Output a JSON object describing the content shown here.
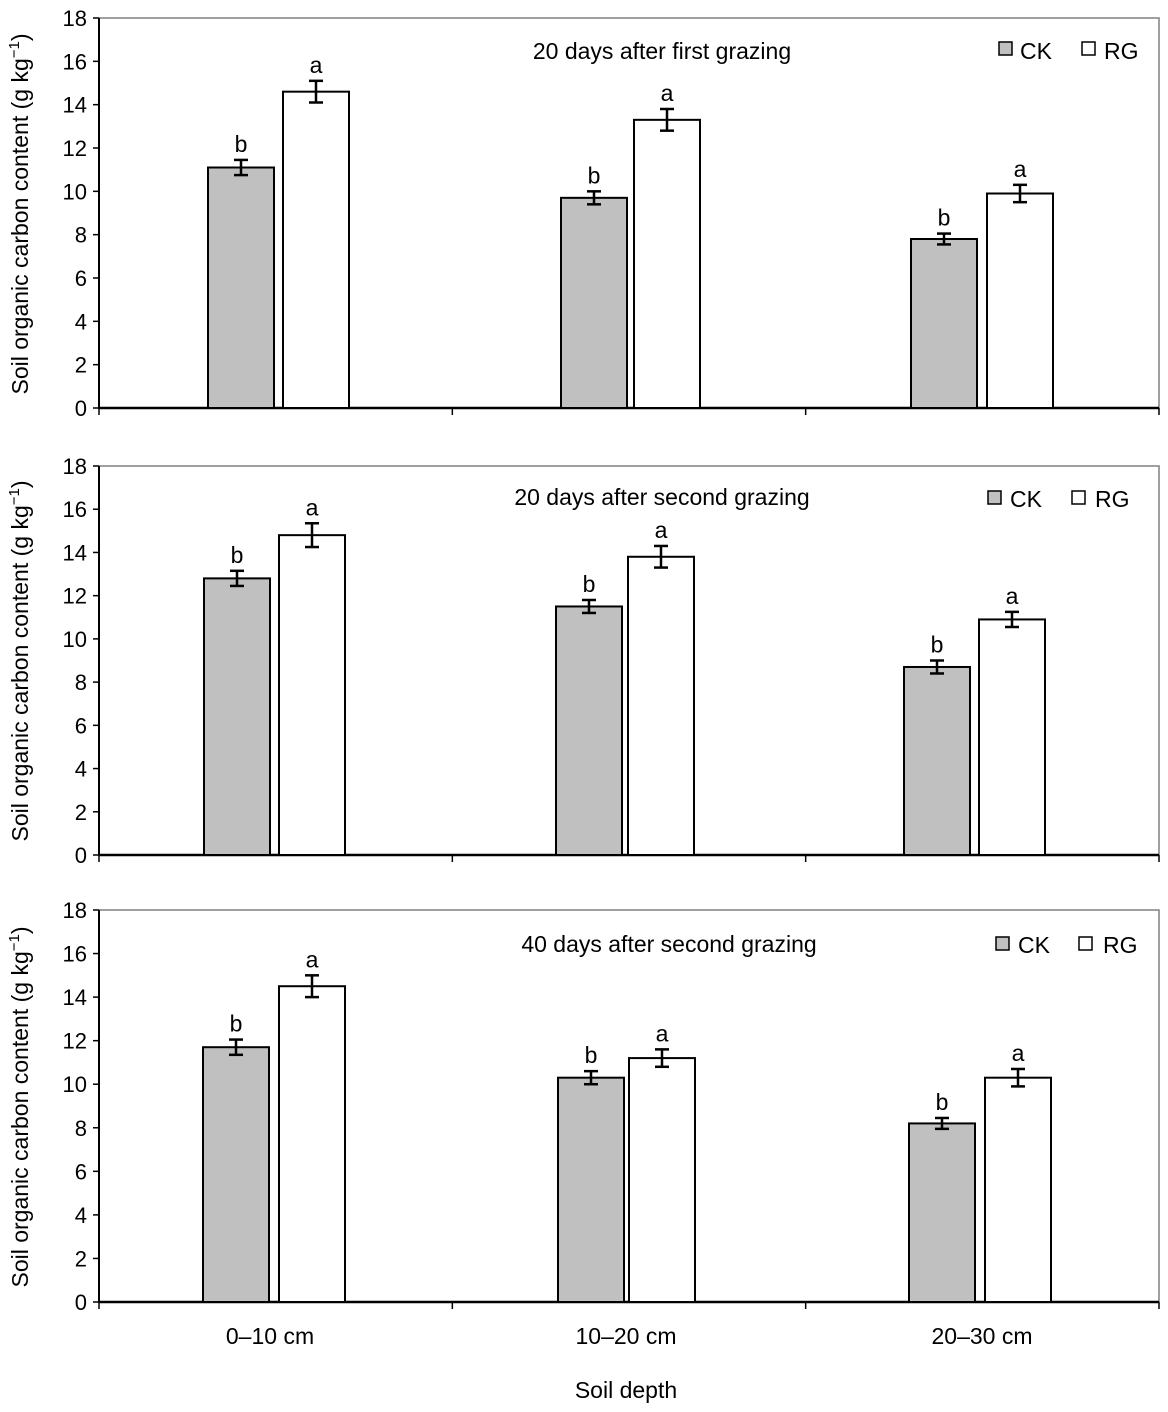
{
  "figure": {
    "ylabel": "Soil organic carbon content (g kg",
    "ylabel_sup": "−1",
    "ylabel_close": ")",
    "xlabel": "Soil depth",
    "colors": {
      "CK": "#c0c0c0",
      "RG": "#ffffff",
      "axis": "#000000",
      "frame": "#808080"
    }
  },
  "chart_data": [
    {
      "type": "bar",
      "title": "20 days after first grazing",
      "categories": [
        "0–10 cm",
        "10–20 cm",
        "20–30 cm"
      ],
      "yticks": [
        "0",
        "2",
        "4",
        "6",
        "8",
        "10",
        "12",
        "14",
        "16",
        "18"
      ],
      "ylim": [
        0,
        18
      ],
      "legend": "top-right",
      "series": [
        {
          "name": "CK",
          "values": [
            11.1,
            9.7,
            7.8
          ],
          "errors": [
            0.35,
            0.3,
            0.25
          ],
          "letters": [
            "b",
            "b",
            "b"
          ]
        },
        {
          "name": "RG",
          "values": [
            14.6,
            13.3,
            9.9
          ],
          "errors": [
            0.5,
            0.5,
            0.4
          ],
          "letters": [
            "a",
            "a",
            "a"
          ]
        }
      ]
    },
    {
      "type": "bar",
      "title": "20 days after second grazing",
      "categories": [
        "0–10 cm",
        "10–20 cm",
        "20–30 cm"
      ],
      "yticks": [
        "0",
        "2",
        "4",
        "6",
        "8",
        "10",
        "12",
        "14",
        "16",
        "18"
      ],
      "ylim": [
        0,
        18
      ],
      "legend": "top-right",
      "series": [
        {
          "name": "CK",
          "values": [
            12.8,
            11.5,
            8.7
          ],
          "errors": [
            0.35,
            0.3,
            0.3
          ],
          "letters": [
            "b",
            "b",
            "b"
          ]
        },
        {
          "name": "RG",
          "values": [
            14.8,
            13.8,
            10.9
          ],
          "errors": [
            0.55,
            0.5,
            0.35
          ],
          "letters": [
            "a",
            "a",
            "a"
          ]
        }
      ]
    },
    {
      "type": "bar",
      "title": "40 days after second grazing",
      "categories": [
        "0–10 cm",
        "10–20 cm",
        "20–30 cm"
      ],
      "yticks": [
        "0",
        "2",
        "4",
        "6",
        "8",
        "10",
        "12",
        "14",
        "16",
        "18"
      ],
      "ylim": [
        0,
        18
      ],
      "legend": "top-right",
      "series": [
        {
          "name": "CK",
          "values": [
            11.7,
            10.3,
            8.2
          ],
          "errors": [
            0.35,
            0.3,
            0.25
          ],
          "letters": [
            "b",
            "b",
            "b"
          ]
        },
        {
          "name": "RG",
          "values": [
            14.5,
            11.2,
            10.3
          ],
          "errors": [
            0.5,
            0.4,
            0.4
          ],
          "letters": [
            "a",
            "a",
            "a"
          ]
        }
      ]
    }
  ]
}
